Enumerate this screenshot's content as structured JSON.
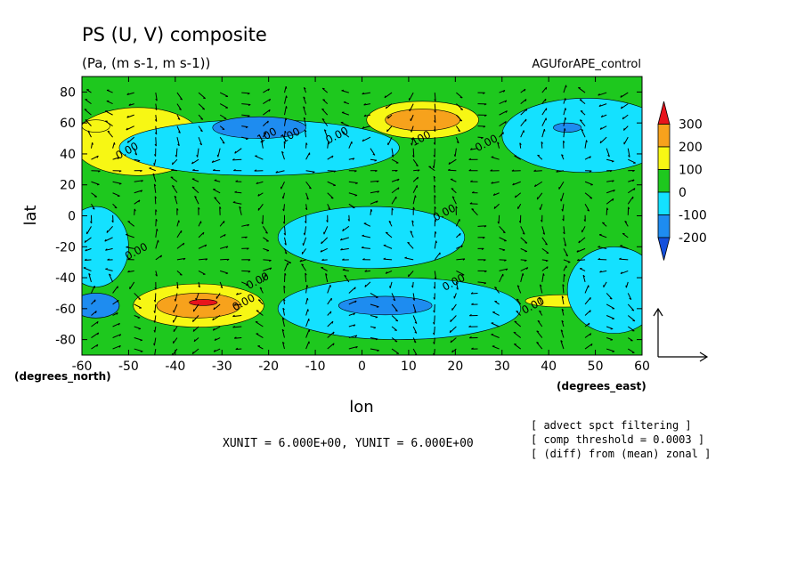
{
  "chart_data": {
    "type": "heatmap",
    "title": "PS (U, V) composite",
    "subtitle": "(Pa, (m s-1, m s-1))",
    "run_name": "AGUforAPE_control",
    "xlabel": "lon",
    "ylabel": "lat",
    "x_unit_label": "(degrees_east)",
    "y_unit_label": "(degrees_north)",
    "xlim": [
      -60,
      60
    ],
    "ylim": [
      -90,
      90
    ],
    "x_ticks": [
      "-60",
      "-50",
      "-40",
      "-30",
      "-20",
      "-10",
      "0",
      "10",
      "20",
      "30",
      "40",
      "50",
      "60"
    ],
    "y_ticks": [
      "-80",
      "-60",
      "-40",
      "-20",
      "0",
      "20",
      "40",
      "60",
      "80"
    ],
    "colorbar": {
      "levels": [
        "300",
        "200",
        "100",
        "0",
        "-100",
        "-200"
      ],
      "colors": [
        "#e8141c",
        "#f7a21c",
        "#f7f714",
        "#1ec81e",
        "#14e1ff",
        "#1e8cf0",
        "#1450dc"
      ]
    },
    "contour_labels": [
      "0.00",
      "100",
      "0.00",
      "100",
      "0.00",
      "0.00",
      "0.00",
      "0.00",
      "0.00",
      "0.00",
      "0.00",
      "100"
    ],
    "blobs": [
      {
        "level": 1,
        "lon": -48,
        "lat": 48,
        "rx": 14,
        "ry": 22
      },
      {
        "level": -1,
        "lon": -22,
        "lat": 44,
        "rx": 30,
        "ry": 18
      },
      {
        "level": -2,
        "lon": -22,
        "lat": 57,
        "rx": 10,
        "ry": 7
      },
      {
        "level": 1,
        "lon": 13,
        "lat": 62,
        "rx": 12,
        "ry": 12
      },
      {
        "level": 2,
        "lon": 13,
        "lat": 62,
        "rx": 8,
        "ry": 7
      },
      {
        "level": -1,
        "lon": 48,
        "lat": 52,
        "rx": 18,
        "ry": 24
      },
      {
        "level": -2,
        "lon": 44,
        "lat": 57,
        "rx": 3,
        "ry": 3
      },
      {
        "level": -1,
        "lon": 2,
        "lat": -14,
        "rx": 20,
        "ry": 20
      },
      {
        "level": -1,
        "lon": -57,
        "lat": -20,
        "rx": 7,
        "ry": 26
      },
      {
        "level": 1,
        "lon": -35,
        "lat": -58,
        "rx": 14,
        "ry": 14
      },
      {
        "level": 2,
        "lon": -35,
        "lat": -58,
        "rx": 9,
        "ry": 8
      },
      {
        "level": 3,
        "lon": -34,
        "lat": -56,
        "rx": 3,
        "ry": 2
      },
      {
        "level": -1,
        "lon": 8,
        "lat": -60,
        "rx": 26,
        "ry": 20
      },
      {
        "level": -2,
        "lon": 5,
        "lat": -58,
        "rx": 10,
        "ry": 6
      },
      {
        "level": 1,
        "lon": 43,
        "lat": -55,
        "rx": 8,
        "ry": 4
      },
      {
        "level": -1,
        "lon": 54,
        "lat": -48,
        "rx": 10,
        "ry": 28
      },
      {
        "level": -2,
        "lon": -57,
        "lat": -58,
        "rx": 5,
        "ry": 8
      },
      {
        "level": 1,
        "lon": -57,
        "lat": 58,
        "rx": 3,
        "ry": 4
      }
    ],
    "vector_reference": {
      "xunit": "6.000E+00",
      "yunit": "6.000E+00"
    },
    "bottom_line": "XUNIT = 6.000E+00, YUNIT = 6.000E+00"
  },
  "notes": [
    "[ advect spct filtering ]",
    "[ comp threshold = 0.0003 ]",
    "[ (diff) from (mean) zonal ]"
  ]
}
